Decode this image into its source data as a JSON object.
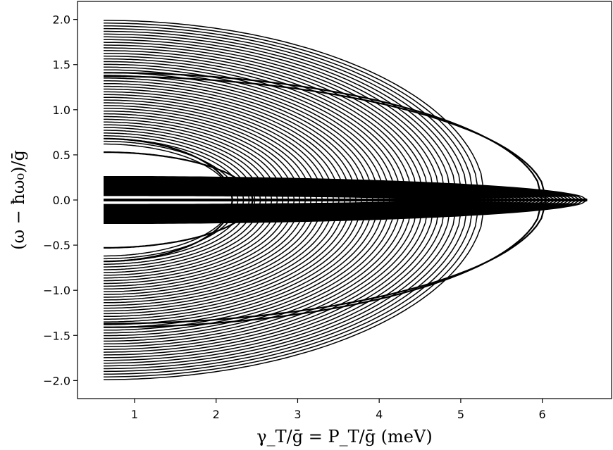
{
  "chart_data": {
    "type": "line",
    "title": "",
    "xlabel": "γ_T/ḡ = P_T/ḡ (meV)",
    "ylabel": "(ω − ħω₀)/ḡ",
    "xlim": [
      0.3,
      6.85
    ],
    "ylim": [
      -2.2,
      2.2
    ],
    "grid": false,
    "legend": "none",
    "line_color": "#000000",
    "xticks": [
      1,
      2,
      3,
      4,
      5,
      6
    ],
    "xtick_labels": [
      "1",
      "2",
      "3",
      "4",
      "5",
      "6"
    ],
    "yticks": [
      -2.0,
      -1.5,
      -1.0,
      -0.5,
      0.0,
      0.5,
      1.0,
      1.5,
      2.0
    ],
    "ytick_labels": [
      "−2.0",
      "−1.5",
      "−1.0",
      "−0.5",
      "0.0",
      "0.5",
      "1.0",
      "1.5",
      "2.0"
    ],
    "x_start": 0.62,
    "outer_branches": {
      "count": 46,
      "y0_range": [
        0.62,
        1.99
      ],
      "x_end_range": [
        2.2,
        5.3
      ]
    },
    "inner_branches": {
      "count": 46,
      "y0_range": [
        0.05,
        0.26
      ],
      "x_end_range": [
        4.6,
        6.55
      ]
    },
    "special_curves": [
      {
        "kind": "outer",
        "y0": 1.41,
        "x_end": 6.0
      },
      {
        "kind": "outer",
        "y0": 1.37,
        "x_end": 6.05
      },
      {
        "kind": "outer",
        "y0": 0.53,
        "x_end": 2.45
      },
      {
        "kind": "outer",
        "y0": 0.68,
        "x_end": 2.2
      }
    ],
    "converge_point": [
      6.55,
      0.0
    ]
  }
}
